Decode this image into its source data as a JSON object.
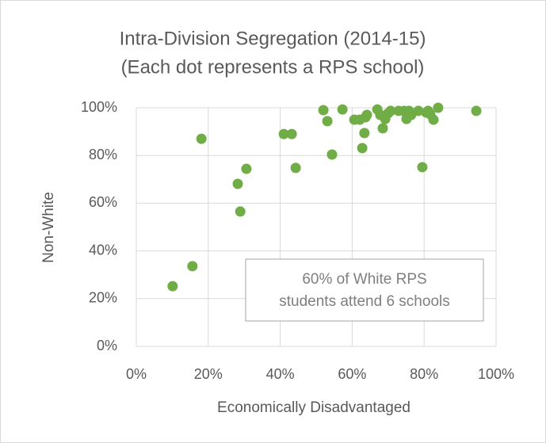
{
  "chart_data": {
    "type": "scatter",
    "title": [
      "Intra-Division Segregation (2014-15)",
      "(Each dot represents a RPS school)"
    ],
    "x_label": "Economically Disadvantaged",
    "y_label": "Non-White",
    "annotation": [
      "60% of White RPS",
      "students attend 6 schools"
    ],
    "color": "#70ad47",
    "grid": true,
    "x": [
      10.1,
      15.6,
      18.1,
      28.2,
      28.9,
      30.6,
      41.0,
      43.2,
      44.3,
      52.0,
      53.1,
      54.4,
      57.3,
      60.6,
      62.1,
      62.8,
      63.4,
      63.7,
      64.1,
      67.0,
      67.8,
      68.5,
      69.2,
      70.0,
      70.7,
      72.9,
      74.4,
      75.1,
      75.8,
      76.4,
      78.4,
      79.5,
      80.6,
      81.1,
      81.7,
      82.6,
      83.9,
      94.5
    ],
    "values": [
      25.2,
      33.6,
      87.0,
      68.1,
      56.5,
      74.4,
      89.0,
      89.0,
      74.8,
      99.0,
      94.4,
      80.4,
      99.3,
      95.0,
      95.0,
      83.1,
      89.4,
      96.0,
      97.0,
      99.3,
      97.0,
      91.4,
      95.3,
      97.7,
      98.7,
      98.7,
      98.7,
      95.3,
      98.7,
      97.0,
      98.7,
      75.1,
      98.0,
      98.7,
      97.3,
      95.0,
      100,
      98.7
    ],
    "xlim": [
      0,
      100
    ],
    "ylim": [
      0,
      100
    ],
    "xticks": [
      {
        "value": 0,
        "label": "0%"
      },
      {
        "value": 20,
        "label": "20%"
      },
      {
        "value": 40,
        "label": "40%"
      },
      {
        "value": 60,
        "label": "60%"
      },
      {
        "value": 80,
        "label": "80%"
      },
      {
        "value": 100,
        "label": "100%"
      }
    ],
    "yticks": [
      {
        "value": 0,
        "label": "0%"
      },
      {
        "value": 20,
        "label": "20%"
      },
      {
        "value": 40,
        "label": "40%"
      },
      {
        "value": 60,
        "label": "60%"
      },
      {
        "value": 80,
        "label": "80%"
      },
      {
        "value": 100,
        "label": "100%"
      }
    ]
  }
}
